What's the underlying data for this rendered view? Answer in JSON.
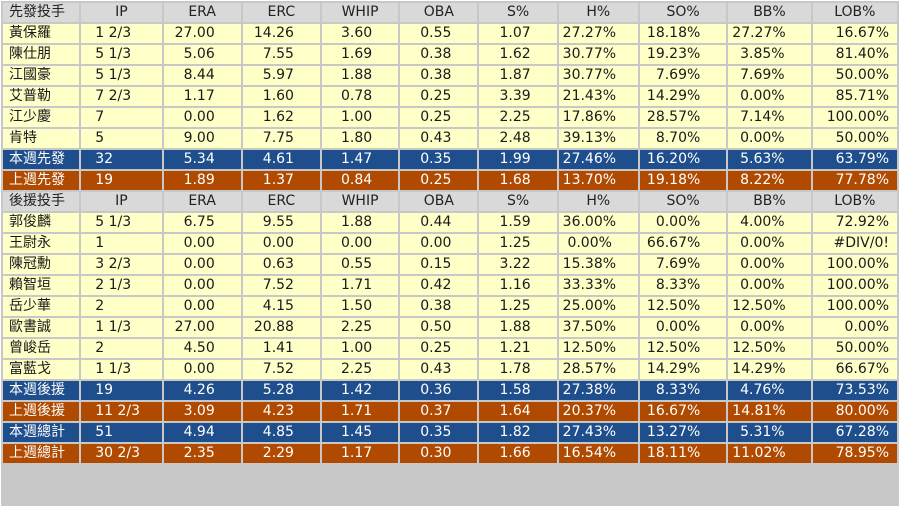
{
  "columns": [
    "IP",
    "ERA",
    "ERC",
    "WHIP",
    "OBA",
    "S%",
    "H%",
    "SO%",
    "BB%",
    "LOB%"
  ],
  "starters": {
    "title": "先發投手",
    "rows": [
      {
        "name": "黃保羅",
        "cells": [
          "1 2/3",
          "27.00",
          "14.26",
          "3.60",
          "0.55",
          "1.07",
          "27.27%",
          "18.18%",
          "27.27%",
          "16.67%"
        ]
      },
      {
        "name": "陳仕朋",
        "cells": [
          "5 1/3",
          "5.06",
          "7.55",
          "1.69",
          "0.38",
          "1.62",
          "30.77%",
          "19.23%",
          "3.85%",
          "81.40%"
        ]
      },
      {
        "name": "江國豪",
        "cells": [
          "5 1/3",
          "8.44",
          "5.97",
          "1.88",
          "0.38",
          "1.87",
          "30.77%",
          "7.69%",
          "7.69%",
          "50.00%"
        ]
      },
      {
        "name": "艾普勒",
        "cells": [
          "7 2/3",
          "1.17",
          "1.60",
          "0.78",
          "0.25",
          "3.39",
          "21.43%",
          "14.29%",
          "0.00%",
          "85.71%"
        ]
      },
      {
        "name": "江少慶",
        "cells": [
          "7",
          "0.00",
          "1.62",
          "1.00",
          "0.25",
          "2.25",
          "17.86%",
          "28.57%",
          "7.14%",
          "100.00%"
        ]
      },
      {
        "name": "肯特",
        "cells": [
          "5",
          "9.00",
          "7.75",
          "1.80",
          "0.43",
          "2.48",
          "39.13%",
          "8.70%",
          "0.00%",
          "50.00%"
        ]
      }
    ],
    "this_week": {
      "name": "本週先發",
      "cells": [
        "32",
        "5.34",
        "4.61",
        "1.47",
        "0.35",
        "1.99",
        "27.46%",
        "16.20%",
        "5.63%",
        "63.79%"
      ]
    },
    "last_week": {
      "name": "上週先發",
      "cells": [
        "19",
        "1.89",
        "1.37",
        "0.84",
        "0.25",
        "1.68",
        "13.70%",
        "19.18%",
        "8.22%",
        "77.78%"
      ]
    }
  },
  "relievers": {
    "title": "後援投手",
    "rows": [
      {
        "name": "郭俊麟",
        "cells": [
          "5 1/3",
          "6.75",
          "9.55",
          "1.88",
          "0.44",
          "1.59",
          "36.00%",
          "0.00%",
          "4.00%",
          "72.92%"
        ]
      },
      {
        "name": "王尉永",
        "cells": [
          "1",
          "0.00",
          "0.00",
          "0.00",
          "0.00",
          "1.25",
          "0.00%",
          "66.67%",
          "0.00%",
          "#DIV/0!"
        ]
      },
      {
        "name": "陳冠勳",
        "cells": [
          "3 2/3",
          "0.00",
          "0.63",
          "0.55",
          "0.15",
          "3.22",
          "15.38%",
          "7.69%",
          "0.00%",
          "100.00%"
        ]
      },
      {
        "name": "賴智垣",
        "cells": [
          "2 1/3",
          "0.00",
          "7.52",
          "1.71",
          "0.42",
          "1.16",
          "33.33%",
          "8.33%",
          "0.00%",
          "100.00%"
        ]
      },
      {
        "name": "岳少華",
        "cells": [
          "2",
          "0.00",
          "4.15",
          "1.50",
          "0.38",
          "1.25",
          "25.00%",
          "12.50%",
          "12.50%",
          "100.00%"
        ]
      },
      {
        "name": "歐書誠",
        "cells": [
          "1 1/3",
          "27.00",
          "20.88",
          "2.25",
          "0.50",
          "1.88",
          "37.50%",
          "0.00%",
          "0.00%",
          "0.00%"
        ]
      },
      {
        "name": "曾峻岳",
        "cells": [
          "2",
          "4.50",
          "1.41",
          "1.00",
          "0.25",
          "1.21",
          "12.50%",
          "12.50%",
          "12.50%",
          "50.00%"
        ]
      },
      {
        "name": "富藍戈",
        "cells": [
          "1 1/3",
          "0.00",
          "7.52",
          "2.25",
          "0.43",
          "1.78",
          "28.57%",
          "14.29%",
          "14.29%",
          "66.67%"
        ]
      }
    ],
    "this_week": {
      "name": "本週後援",
      "cells": [
        "19",
        "4.26",
        "5.28",
        "1.42",
        "0.36",
        "1.58",
        "27.38%",
        "8.33%",
        "4.76%",
        "73.53%"
      ]
    },
    "last_week": {
      "name": "上週後援",
      "cells": [
        "11 2/3",
        "3.09",
        "4.23",
        "1.71",
        "0.37",
        "1.64",
        "20.37%",
        "16.67%",
        "14.81%",
        "80.00%"
      ]
    }
  },
  "totals": {
    "this_week": {
      "name": "本週總計",
      "cells": [
        "51",
        "4.94",
        "4.85",
        "1.45",
        "0.35",
        "1.82",
        "27.43%",
        "13.27%",
        "5.31%",
        "67.28%"
      ]
    },
    "last_week": {
      "name": "上週總計",
      "cells": [
        "30 2/3",
        "2.35",
        "2.29",
        "1.17",
        "0.30",
        "1.66",
        "16.54%",
        "18.11%",
        "11.02%",
        "78.95%"
      ]
    }
  },
  "colors": {
    "header": "#d9d9d9",
    "body": "#ffffc8",
    "this_week": "#1f4e8c",
    "last_week": "#b04a00",
    "grid": "#c8c8c8"
  }
}
